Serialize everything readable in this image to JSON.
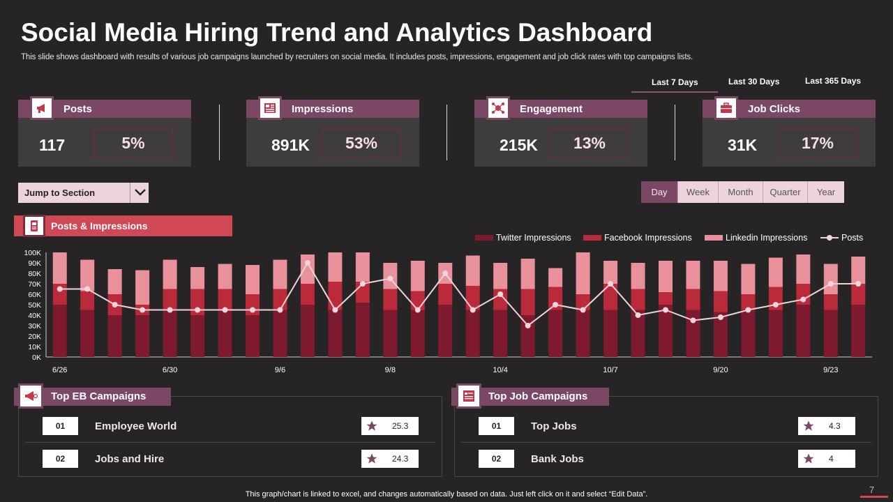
{
  "header": {
    "title": "Social Media Hiring Trend and Analytics Dashboard",
    "subtitle": "This slide shows dashboard with results of various job campaigns launched by recruiters on social media. It includes posts, impressions, engagement and job click rates with top campaigns lists."
  },
  "range_tabs": [
    "Last 7 Days",
    "Last 30 Days",
    "Last 365 Days"
  ],
  "kpis": [
    {
      "label": "Posts",
      "value": "117",
      "pct": "5%",
      "icon": "megaphone-icon"
    },
    {
      "label": "Impressions",
      "value": "891K",
      "pct": "53%",
      "icon": "newspaper-icon"
    },
    {
      "label": "Engagement",
      "value": "215K",
      "pct": "13%",
      "icon": "network-icon"
    },
    {
      "label": "Job Clicks",
      "value": "31K",
      "pct": "17%",
      "icon": "briefcase-icon"
    }
  ],
  "jump": {
    "label": "Jump to Section"
  },
  "periods": [
    "Day",
    "Week",
    "Month",
    "Quarter",
    "Year"
  ],
  "chart_section": {
    "label": "Posts & Impressions"
  },
  "colors": {
    "twitter": "#7d1a2d",
    "facebook": "#bb2a3a",
    "linkedin": "#e8919a",
    "posts": "#f2d4dc",
    "accent": "#7a4764"
  },
  "chart_data": {
    "type": "bar",
    "stacked": true,
    "ylim": [
      0,
      100
    ],
    "yticks": [
      "0K",
      "10K",
      "20K",
      "30K",
      "40K",
      "50K",
      "60K",
      "70K",
      "80K",
      "90K",
      "100K"
    ],
    "xtick_labels": [
      "6/26",
      "6/30",
      "9/6",
      "9/8",
      "10/4",
      "10/7",
      "9/20",
      "9/23"
    ],
    "xtick_positions": [
      0,
      4,
      8,
      12,
      16,
      20,
      24,
      28
    ],
    "series": [
      {
        "name": "Twitter Impressions",
        "values": [
          50,
          45,
          40,
          40,
          45,
          40,
          45,
          40,
          45,
          50,
          45,
          52,
          45,
          45,
          50,
          45,
          45,
          40,
          45,
          45,
          45,
          45,
          50,
          45,
          43,
          45,
          45,
          50,
          45,
          50
        ]
      },
      {
        "name": "Facebook Impressions",
        "values": [
          20,
          18,
          20,
          10,
          20,
          25,
          20,
          20,
          20,
          20,
          27,
          20,
          20,
          18,
          20,
          23,
          20,
          25,
          22,
          15,
          25,
          20,
          12,
          20,
          20,
          15,
          22,
          20,
          15,
          20
        ]
      },
      {
        "name": "Linkedin Impressions",
        "values": [
          30,
          30,
          24,
          33,
          28,
          21,
          24,
          28,
          28,
          28,
          28,
          28,
          25,
          29,
          20,
          29,
          25,
          29,
          18,
          40,
          22,
          25,
          30,
          27,
          29,
          29,
          28,
          28,
          29,
          26
        ]
      },
      {
        "name": "Posts",
        "type": "line",
        "values": [
          65,
          65,
          50,
          45,
          45,
          45,
          45,
          45,
          45,
          90,
          45,
          70,
          75,
          45,
          80,
          45,
          60,
          30,
          50,
          45,
          70,
          40,
          45,
          35,
          38,
          45,
          50,
          55,
          70,
          70
        ]
      }
    ]
  },
  "eb_campaigns": {
    "title": "Top EB Campaigns",
    "rows": [
      {
        "rank": "01",
        "name": "Employee World",
        "score": "25.3"
      },
      {
        "rank": "02",
        "name": "Jobs and Hire",
        "score": "24.3"
      }
    ]
  },
  "job_campaigns": {
    "title": "Top Job Campaigns",
    "rows": [
      {
        "rank": "01",
        "name": "Top Jobs",
        "score": "4.3"
      },
      {
        "rank": "02",
        "name": "Bank Jobs",
        "score": "4"
      }
    ]
  },
  "footer": {
    "note": "This graph/chart is linked to excel,  and changes automatically based on data. Just left click on it and select “Edit Data”.",
    "page": "7"
  }
}
